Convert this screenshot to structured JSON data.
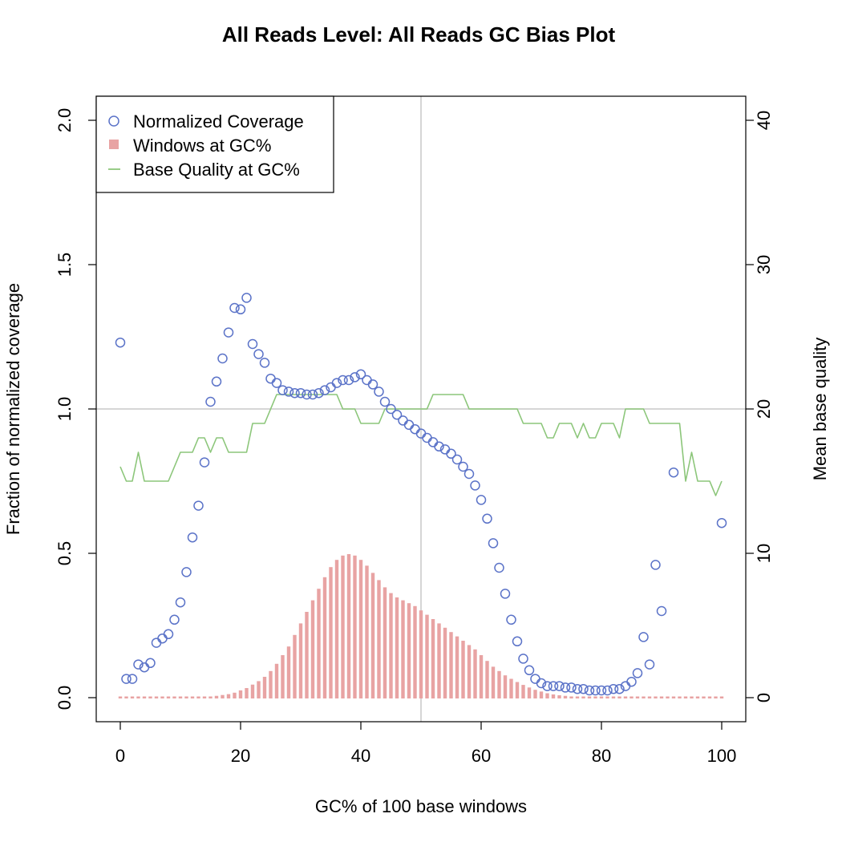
{
  "chart_data": {
    "type": "scatter",
    "title": "All Reads Level: All Reads GC Bias Plot",
    "xlabel": "GC% of 100 base windows",
    "ylabel": "Fraction of normalized coverage",
    "ylabel_right": "Mean base quality",
    "xlim": [
      0,
      100
    ],
    "ylim": [
      0,
      2.0
    ],
    "ylim_right": [
      0,
      40
    ],
    "x_ticks": [
      "0",
      "20",
      "40",
      "60",
      "80",
      "100"
    ],
    "y_ticks": [
      "0.0",
      "0.5",
      "1.0",
      "1.5",
      "2.0"
    ],
    "y_right_ticks": [
      "0",
      "10",
      "20",
      "30",
      "40"
    ],
    "reference_lines": {
      "x": 50,
      "y": 1.0
    },
    "colors": {
      "coverage": "#5b73c8",
      "windows": "#e8a3a3",
      "quality": "#8cc67a",
      "refline": "#c8c8c8"
    },
    "legend": {
      "position": "top-left",
      "entries": [
        "Normalized Coverage",
        "Windows at GC%",
        "Base Quality at GC%"
      ]
    },
    "series": [
      {
        "name": "Normalized Coverage",
        "kind": "points",
        "axis": "left",
        "points": [
          [
            0,
            1.23
          ],
          [
            1,
            0.065
          ],
          [
            2,
            0.065
          ],
          [
            3,
            0.115
          ],
          [
            4,
            0.105
          ],
          [
            5,
            0.12
          ],
          [
            6,
            0.19
          ],
          [
            7,
            0.205
          ],
          [
            8,
            0.22
          ],
          [
            9,
            0.27
          ],
          [
            10,
            0.33
          ],
          [
            11,
            0.435
          ],
          [
            12,
            0.555
          ],
          [
            13,
            0.665
          ],
          [
            14,
            0.815
          ],
          [
            15,
            1.025
          ],
          [
            16,
            1.095
          ],
          [
            17,
            1.175
          ],
          [
            18,
            1.265
          ],
          [
            19,
            1.35
          ],
          [
            20,
            1.345
          ],
          [
            21,
            1.385
          ],
          [
            22,
            1.225
          ],
          [
            23,
            1.19
          ],
          [
            24,
            1.16
          ],
          [
            25,
            1.105
          ],
          [
            26,
            1.09
          ],
          [
            27,
            1.065
          ],
          [
            28,
            1.06
          ],
          [
            29,
            1.055
          ],
          [
            30,
            1.055
          ],
          [
            31,
            1.05
          ],
          [
            32,
            1.05
          ],
          [
            33,
            1.055
          ],
          [
            34,
            1.065
          ],
          [
            35,
            1.075
          ],
          [
            36,
            1.09
          ],
          [
            37,
            1.1
          ],
          [
            38,
            1.1
          ],
          [
            39,
            1.11
          ],
          [
            40,
            1.12
          ],
          [
            41,
            1.1
          ],
          [
            42,
            1.085
          ],
          [
            43,
            1.06
          ],
          [
            44,
            1.025
          ],
          [
            45,
            1.0
          ],
          [
            46,
            0.98
          ],
          [
            47,
            0.96
          ],
          [
            48,
            0.945
          ],
          [
            49,
            0.93
          ],
          [
            50,
            0.915
          ],
          [
            51,
            0.9
          ],
          [
            52,
            0.885
          ],
          [
            53,
            0.87
          ],
          [
            54,
            0.86
          ],
          [
            55,
            0.845
          ],
          [
            56,
            0.825
          ],
          [
            57,
            0.8
          ],
          [
            58,
            0.775
          ],
          [
            59,
            0.735
          ],
          [
            60,
            0.685
          ],
          [
            61,
            0.62
          ],
          [
            62,
            0.535
          ],
          [
            63,
            0.45
          ],
          [
            64,
            0.36
          ],
          [
            65,
            0.27
          ],
          [
            66,
            0.195
          ],
          [
            67,
            0.135
          ],
          [
            68,
            0.095
          ],
          [
            69,
            0.065
          ],
          [
            70,
            0.05
          ],
          [
            71,
            0.04
          ],
          [
            72,
            0.04
          ],
          [
            73,
            0.04
          ],
          [
            74,
            0.035
          ],
          [
            75,
            0.035
          ],
          [
            76,
            0.03
          ],
          [
            77,
            0.03
          ],
          [
            78,
            0.025
          ],
          [
            79,
            0.025
          ],
          [
            80,
            0.025
          ],
          [
            81,
            0.025
          ],
          [
            82,
            0.03
          ],
          [
            83,
            0.03
          ],
          [
            84,
            0.04
          ],
          [
            85,
            0.055
          ],
          [
            86,
            0.085
          ],
          [
            87,
            0.21
          ],
          [
            88,
            0.115
          ],
          [
            89,
            0.46
          ],
          [
            90,
            0.3
          ],
          [
            92,
            0.78
          ],
          [
            100,
            0.605
          ]
        ]
      },
      {
        "name": "Windows at GC%",
        "kind": "bars",
        "axis": "left",
        "x": [
          0,
          1,
          2,
          3,
          4,
          5,
          6,
          7,
          8,
          9,
          10,
          11,
          12,
          13,
          14,
          15,
          16,
          17,
          18,
          19,
          20,
          21,
          22,
          23,
          24,
          25,
          26,
          27,
          28,
          29,
          30,
          31,
          32,
          33,
          34,
          35,
          36,
          37,
          38,
          39,
          40,
          41,
          42,
          43,
          44,
          45,
          46,
          47,
          48,
          49,
          50,
          51,
          52,
          53,
          54,
          55,
          56,
          57,
          58,
          59,
          60,
          61,
          62,
          63,
          64,
          65,
          66,
          67,
          68,
          69,
          70,
          71,
          72,
          73,
          74,
          75,
          76,
          77,
          78,
          79,
          80,
          81,
          82,
          83,
          84,
          85,
          86,
          87,
          88,
          89,
          90,
          91,
          92,
          93,
          94,
          95,
          96,
          97,
          98,
          99,
          100
        ],
        "values": [
          0.003,
          0.003,
          0.003,
          0.003,
          0.003,
          0.003,
          0.003,
          0.003,
          0.003,
          0.003,
          0.003,
          0.003,
          0.004,
          0.005,
          0.006,
          0.007,
          0.009,
          0.012,
          0.015,
          0.02,
          0.028,
          0.036,
          0.048,
          0.06,
          0.075,
          0.095,
          0.12,
          0.15,
          0.18,
          0.22,
          0.26,
          0.3,
          0.34,
          0.38,
          0.42,
          0.455,
          0.48,
          0.495,
          0.5,
          0.495,
          0.48,
          0.46,
          0.435,
          0.41,
          0.385,
          0.365,
          0.35,
          0.34,
          0.33,
          0.32,
          0.305,
          0.29,
          0.275,
          0.26,
          0.245,
          0.23,
          0.215,
          0.2,
          0.185,
          0.17,
          0.15,
          0.13,
          0.11,
          0.095,
          0.08,
          0.068,
          0.057,
          0.047,
          0.038,
          0.03,
          0.024,
          0.018,
          0.014,
          0.011,
          0.009,
          0.007,
          0.006,
          0.005,
          0.004,
          0.004,
          0.003,
          0.003,
          0.003,
          0.003,
          0.003,
          0.003,
          0.003,
          0.003,
          0.003,
          0.003,
          0.003,
          0.003,
          0.003,
          0.003,
          0.003,
          0.003,
          0.003,
          0.003,
          0.003,
          0.003,
          0.003
        ]
      },
      {
        "name": "Base Quality at GC%",
        "kind": "step",
        "axis": "right",
        "points": [
          [
            0,
            16
          ],
          [
            1,
            15
          ],
          [
            2,
            15
          ],
          [
            3,
            17
          ],
          [
            4,
            15
          ],
          [
            5,
            15
          ],
          [
            6,
            15
          ],
          [
            7,
            15
          ],
          [
            8,
            15
          ],
          [
            9,
            16
          ],
          [
            10,
            17
          ],
          [
            11,
            17
          ],
          [
            12,
            17
          ],
          [
            13,
            18
          ],
          [
            14,
            18
          ],
          [
            15,
            17
          ],
          [
            16,
            18
          ],
          [
            17,
            18
          ],
          [
            18,
            17
          ],
          [
            19,
            17
          ],
          [
            20,
            17
          ],
          [
            21,
            17
          ],
          [
            22,
            19
          ],
          [
            23,
            19
          ],
          [
            24,
            19
          ],
          [
            25,
            20
          ],
          [
            26,
            21
          ],
          [
            27,
            21
          ],
          [
            28,
            21
          ],
          [
            29,
            21
          ],
          [
            30,
            21
          ],
          [
            31,
            21
          ],
          [
            32,
            21
          ],
          [
            33,
            21
          ],
          [
            34,
            21
          ],
          [
            35,
            21
          ],
          [
            36,
            21
          ],
          [
            37,
            20
          ],
          [
            38,
            20
          ],
          [
            39,
            20
          ],
          [
            40,
            19
          ],
          [
            41,
            19
          ],
          [
            42,
            19
          ],
          [
            43,
            19
          ],
          [
            44,
            20
          ],
          [
            45,
            20
          ],
          [
            46,
            20
          ],
          [
            47,
            20
          ],
          [
            48,
            20
          ],
          [
            49,
            20
          ],
          [
            50,
            20
          ],
          [
            51,
            20
          ],
          [
            52,
            21
          ],
          [
            53,
            21
          ],
          [
            54,
            21
          ],
          [
            55,
            21
          ],
          [
            56,
            21
          ],
          [
            57,
            21
          ],
          [
            58,
            20
          ],
          [
            59,
            20
          ],
          [
            60,
            20
          ],
          [
            61,
            20
          ],
          [
            62,
            20
          ],
          [
            63,
            20
          ],
          [
            64,
            20
          ],
          [
            65,
            20
          ],
          [
            66,
            20
          ],
          [
            67,
            19
          ],
          [
            68,
            19
          ],
          [
            69,
            19
          ],
          [
            70,
            19
          ],
          [
            71,
            18
          ],
          [
            72,
            18
          ],
          [
            73,
            19
          ],
          [
            74,
            19
          ],
          [
            75,
            19
          ],
          [
            76,
            18
          ],
          [
            77,
            19
          ],
          [
            78,
            18
          ],
          [
            79,
            18
          ],
          [
            80,
            19
          ],
          [
            81,
            19
          ],
          [
            82,
            19
          ],
          [
            83,
            18
          ],
          [
            84,
            20
          ],
          [
            85,
            20
          ],
          [
            86,
            20
          ],
          [
            87,
            20
          ],
          [
            88,
            19
          ],
          [
            89,
            19
          ],
          [
            90,
            19
          ],
          [
            91,
            19
          ],
          [
            92,
            19
          ],
          [
            93,
            19
          ],
          [
            94,
            15
          ],
          [
            95,
            17
          ],
          [
            96,
            15
          ],
          [
            97,
            15
          ],
          [
            98,
            15
          ],
          [
            99,
            14
          ],
          [
            100,
            15
          ]
        ]
      }
    ]
  }
}
